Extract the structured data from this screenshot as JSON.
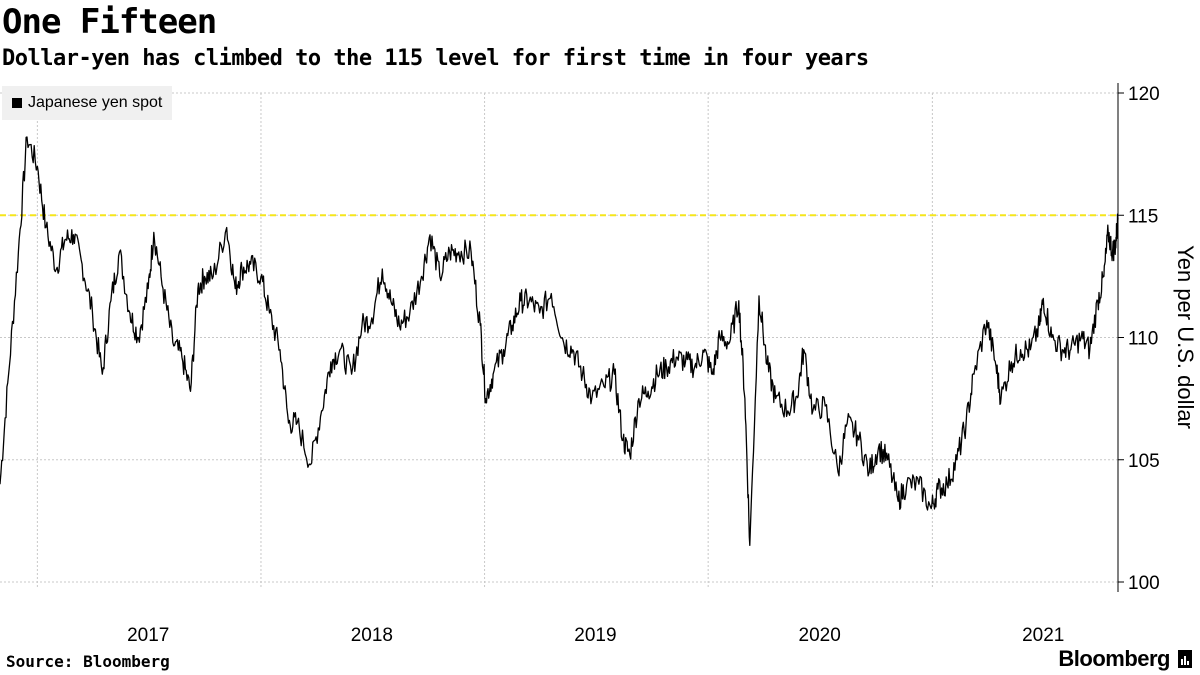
{
  "header": {
    "title": "One Fifteen",
    "subtitle": "Dollar-yen has climbed to the 115 level for first time in four years"
  },
  "footer": {
    "source": "Source: Bloomberg",
    "brand": "Bloomberg"
  },
  "colors": {
    "series": "#000000",
    "reference_line": "#f5e61c",
    "grid": "#c8c8c8",
    "legend_bg": "#f0f0f0"
  },
  "chart_data": {
    "type": "line",
    "title": "One Fifteen",
    "subtitle": "Dollar-yen has climbed to the 115 level for first time in four years",
    "xlabel": "",
    "ylabel": "Yen per U.S. dollar",
    "y_axis_position": "right",
    "ylim": [
      100,
      120
    ],
    "yticks": [
      100,
      105,
      110,
      115,
      120
    ],
    "xlim": [
      "2016-11-01",
      "2021-10-31"
    ],
    "xticks": [
      "2017",
      "2018",
      "2019",
      "2020",
      "2021"
    ],
    "grid": true,
    "legend_position": "top-left",
    "reference_line": {
      "y": 115,
      "style": "dashed",
      "color": "#f5e61c"
    },
    "series": [
      {
        "name": "Japanese yen spot",
        "points": [
          [
            "2016-11-01",
            104.0
          ],
          [
            "2016-11-15",
            108.5
          ],
          [
            "2016-12-01",
            113.5
          ],
          [
            "2016-12-15",
            118.2
          ],
          [
            "2017-01-01",
            117.0
          ],
          [
            "2017-01-15",
            114.5
          ],
          [
            "2017-02-01",
            112.8
          ],
          [
            "2017-02-15",
            114.0
          ],
          [
            "2017-03-01",
            114.2
          ],
          [
            "2017-03-15",
            113.0
          ],
          [
            "2017-04-01",
            111.0
          ],
          [
            "2017-04-17",
            108.5
          ],
          [
            "2017-05-01",
            111.5
          ],
          [
            "2017-05-15",
            113.5
          ],
          [
            "2017-06-01",
            111.0
          ],
          [
            "2017-06-15",
            110.0
          ],
          [
            "2017-07-01",
            112.0
          ],
          [
            "2017-07-10",
            114.3
          ],
          [
            "2017-07-25",
            112.0
          ],
          [
            "2017-08-10",
            109.8
          ],
          [
            "2017-08-25",
            109.2
          ],
          [
            "2017-09-08",
            107.8
          ],
          [
            "2017-09-20",
            112.0
          ],
          [
            "2017-10-01",
            112.5
          ],
          [
            "2017-10-15",
            112.5
          ],
          [
            "2017-11-06",
            114.5
          ],
          [
            "2017-11-20",
            112.0
          ],
          [
            "2017-12-01",
            112.8
          ],
          [
            "2017-12-15",
            113.0
          ],
          [
            "2018-01-01",
            112.5
          ],
          [
            "2018-01-15",
            111.0
          ],
          [
            "2018-02-01",
            109.5
          ],
          [
            "2018-02-15",
            106.5
          ],
          [
            "2018-03-01",
            106.5
          ],
          [
            "2018-03-23",
            104.8
          ],
          [
            "2018-04-10",
            107.0
          ],
          [
            "2018-04-25",
            109.0
          ],
          [
            "2018-05-10",
            109.5
          ],
          [
            "2018-05-29",
            108.5
          ],
          [
            "2018-06-15",
            110.5
          ],
          [
            "2018-07-01",
            110.8
          ],
          [
            "2018-07-18",
            112.8
          ],
          [
            "2018-08-01",
            111.5
          ],
          [
            "2018-08-15",
            110.5
          ],
          [
            "2018-09-01",
            111.0
          ],
          [
            "2018-09-20",
            112.5
          ],
          [
            "2018-10-04",
            114.2
          ],
          [
            "2018-10-20",
            112.5
          ],
          [
            "2018-11-05",
            113.5
          ],
          [
            "2018-11-20",
            113.5
          ],
          [
            "2018-12-10",
            113.5
          ],
          [
            "2018-12-25",
            110.5
          ],
          [
            "2019-01-03",
            107.5
          ],
          [
            "2019-01-15",
            108.5
          ],
          [
            "2019-02-01",
            109.5
          ],
          [
            "2019-02-15",
            110.5
          ],
          [
            "2019-03-01",
            111.5
          ],
          [
            "2019-03-15",
            111.5
          ],
          [
            "2019-04-01",
            111.0
          ],
          [
            "2019-04-20",
            111.8
          ],
          [
            "2019-05-10",
            109.8
          ],
          [
            "2019-05-25",
            109.5
          ],
          [
            "2019-06-10",
            108.5
          ],
          [
            "2019-06-25",
            107.5
          ],
          [
            "2019-07-15",
            108.0
          ],
          [
            "2019-08-01",
            108.5
          ],
          [
            "2019-08-15",
            105.8
          ],
          [
            "2019-08-26",
            105.2
          ],
          [
            "2019-09-10",
            107.5
          ],
          [
            "2019-09-25",
            107.8
          ],
          [
            "2019-10-10",
            108.5
          ],
          [
            "2019-10-25",
            108.8
          ],
          [
            "2019-11-10",
            109.2
          ],
          [
            "2019-11-25",
            109.0
          ],
          [
            "2019-12-10",
            108.8
          ],
          [
            "2019-12-25",
            109.4
          ],
          [
            "2020-01-08",
            108.5
          ],
          [
            "2020-01-20",
            110.0
          ],
          [
            "2020-02-05",
            109.8
          ],
          [
            "2020-02-20",
            111.5
          ],
          [
            "2020-03-01",
            107.5
          ],
          [
            "2020-03-09",
            101.5
          ],
          [
            "2020-03-24",
            111.7
          ],
          [
            "2020-04-06",
            108.9
          ],
          [
            "2020-04-20",
            107.5
          ],
          [
            "2020-05-10",
            107.0
          ],
          [
            "2020-05-25",
            107.6
          ],
          [
            "2020-06-05",
            109.5
          ],
          [
            "2020-06-20",
            107.0
          ],
          [
            "2020-07-10",
            107.2
          ],
          [
            "2020-07-31",
            104.5
          ],
          [
            "2020-08-15",
            106.5
          ],
          [
            "2020-09-01",
            106.0
          ],
          [
            "2020-09-20",
            104.5
          ],
          [
            "2020-10-05",
            105.5
          ],
          [
            "2020-10-20",
            105.0
          ],
          [
            "2020-11-06",
            103.3
          ],
          [
            "2020-11-20",
            104.0
          ],
          [
            "2020-12-10",
            104.0
          ],
          [
            "2020-12-30",
            103.0
          ],
          [
            "2021-01-10",
            103.8
          ],
          [
            "2021-01-25",
            104.0
          ],
          [
            "2021-02-10",
            105.0
          ],
          [
            "2021-02-25",
            106.5
          ],
          [
            "2021-03-10",
            108.5
          ],
          [
            "2021-03-31",
            110.7
          ],
          [
            "2021-04-15",
            108.8
          ],
          [
            "2021-04-23",
            107.5
          ],
          [
            "2021-05-10",
            109.0
          ],
          [
            "2021-05-25",
            109.5
          ],
          [
            "2021-06-10",
            109.5
          ],
          [
            "2021-06-25",
            110.5
          ],
          [
            "2021-07-01",
            111.6
          ],
          [
            "2021-07-15",
            110.0
          ],
          [
            "2021-08-01",
            109.5
          ],
          [
            "2021-08-15",
            109.5
          ],
          [
            "2021-09-01",
            110.0
          ],
          [
            "2021-09-15",
            109.5
          ],
          [
            "2021-09-28",
            111.5
          ],
          [
            "2021-10-08",
            112.5
          ],
          [
            "2021-10-15",
            114.3
          ],
          [
            "2021-10-22",
            113.5
          ],
          [
            "2021-10-27",
            113.8
          ],
          [
            "2021-10-31",
            114.9
          ]
        ]
      }
    ]
  }
}
